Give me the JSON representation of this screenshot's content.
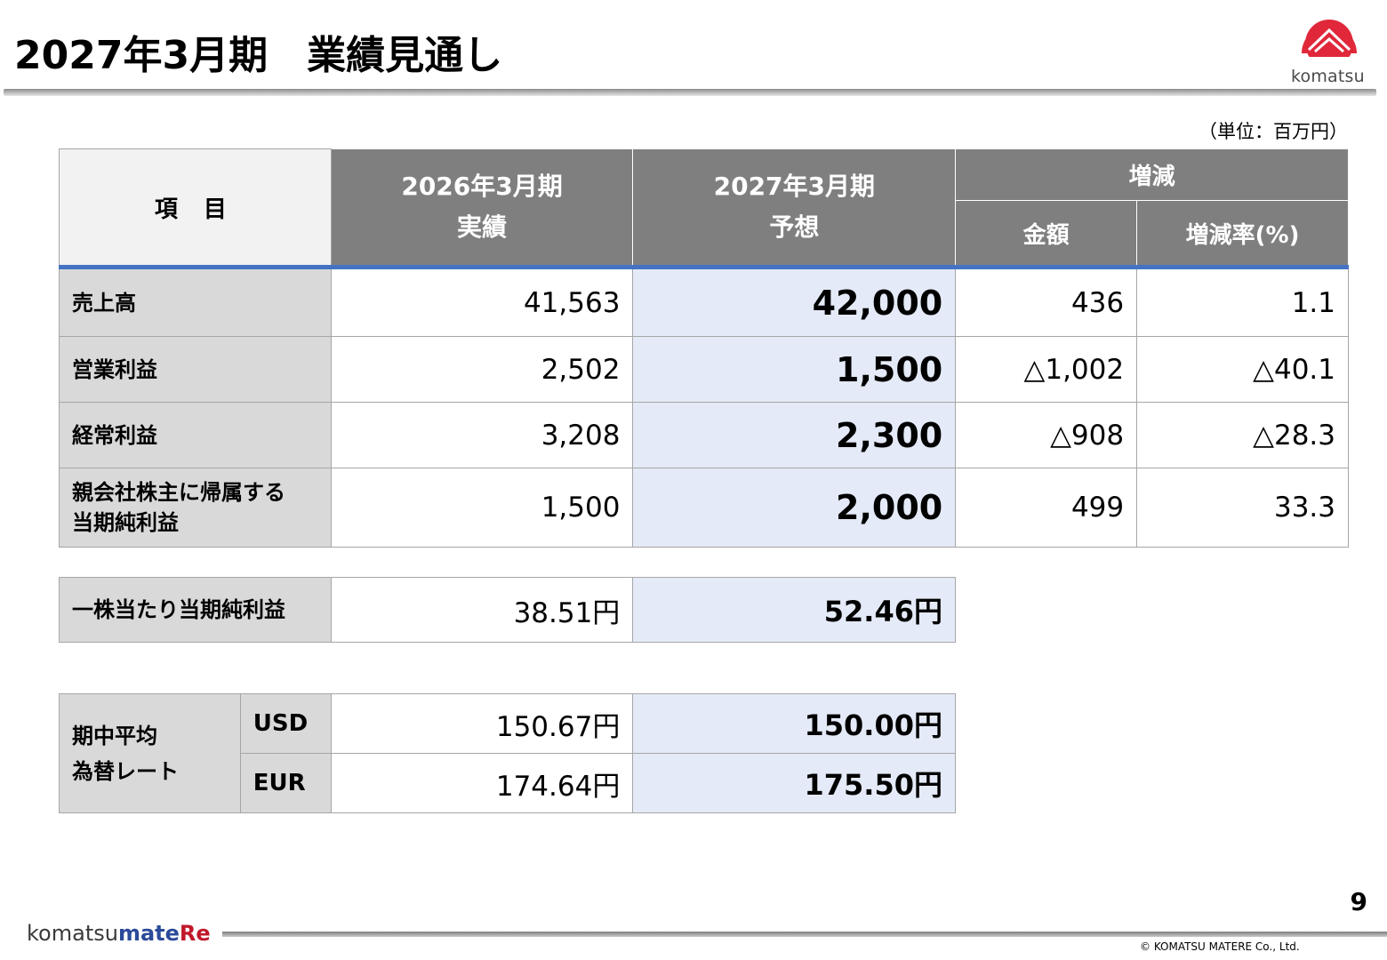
{
  "header": {
    "title": "2027年3月期　業績見通し",
    "logo_text": "komatsu"
  },
  "unit_note": "（単位：百万円）",
  "main_table": {
    "headers": {
      "item": "項 目",
      "prev_line1": "2026年3月期",
      "prev_line2": "実績",
      "fc_line1": "2027年3月期",
      "fc_line2": "予想",
      "change": "増減",
      "amount": "金額",
      "rate": "増減率(%)"
    },
    "rows": [
      {
        "label": "売上高",
        "prev": "41,563",
        "forecast": "42,000",
        "amount": "436",
        "rate": "1.1"
      },
      {
        "label": "営業利益",
        "prev": "2,502",
        "forecast": "1,500",
        "amount": "△1,002",
        "rate": "△40.1"
      },
      {
        "label": "経常利益",
        "prev": "3,208",
        "forecast": "2,300",
        "amount": "△908",
        "rate": "△28.3"
      },
      {
        "label_line1": "親会社株主に帰属する",
        "label_line2": "当期純利益",
        "prev": "1,500",
        "forecast": "2,000",
        "amount": "499",
        "rate": "33.3"
      }
    ]
  },
  "eps": {
    "label": "一株当たり当期純利益",
    "prev": "38.51円",
    "forecast": "52.46円"
  },
  "fx": {
    "label_line1": "期中平均",
    "label_line2": "為替レート",
    "rows": [
      {
        "currency": "USD",
        "prev": "150.67円",
        "forecast": "150.00円"
      },
      {
        "currency": "EUR",
        "prev": "174.64円",
        "forecast": "175.50円"
      }
    ]
  },
  "footer": {
    "page_number": "9",
    "brand_part1": "komatsu",
    "brand_part2": "mate",
    "brand_part3": "Re",
    "copyright": "© KOMATSU MATERE Co., Ltd."
  },
  "colors": {
    "header_gray": "#7f7f7f",
    "label_gray": "#d9d9d9",
    "forecast_blue": "#e4eaf7",
    "accent_blue": "#4472c4",
    "logo_red": "#e0283a"
  }
}
